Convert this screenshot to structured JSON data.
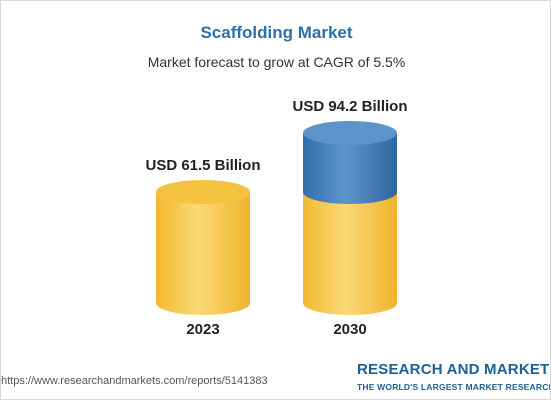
{
  "chart_data": {
    "type": "bar",
    "style": "3d-cylinder",
    "title": "Scaffolding Market",
    "subtitle": "Market forecast to grow at CAGR of 5.5%",
    "categories": [
      "2023",
      "2030"
    ],
    "values": [
      61.5,
      94.2
    ],
    "value_labels": [
      "USD 61.5 Billion",
      "USD 94.2 Billion"
    ],
    "segments": [
      {
        "color": "#f6c542",
        "values": [
          61.5,
          61.5
        ]
      },
      {
        "color": "#3f7bb6",
        "values": [
          0,
          32.7
        ]
      }
    ],
    "ylim": [
      0,
      94.2
    ],
    "grid": false,
    "legend": "none"
  },
  "footer": {
    "source_url": "https://www.researchandmarkets.com/reports/5141383",
    "brand_name": "RESEARCH AND MARKETS",
    "brand_tagline": "THE WORLD'S LARGEST MARKET RESEARCH STORE"
  },
  "colors": {
    "title": "#2f6fa7",
    "yellow": "#f6c542",
    "blue": "#3f7bb6",
    "brand": "#1f5f93"
  }
}
